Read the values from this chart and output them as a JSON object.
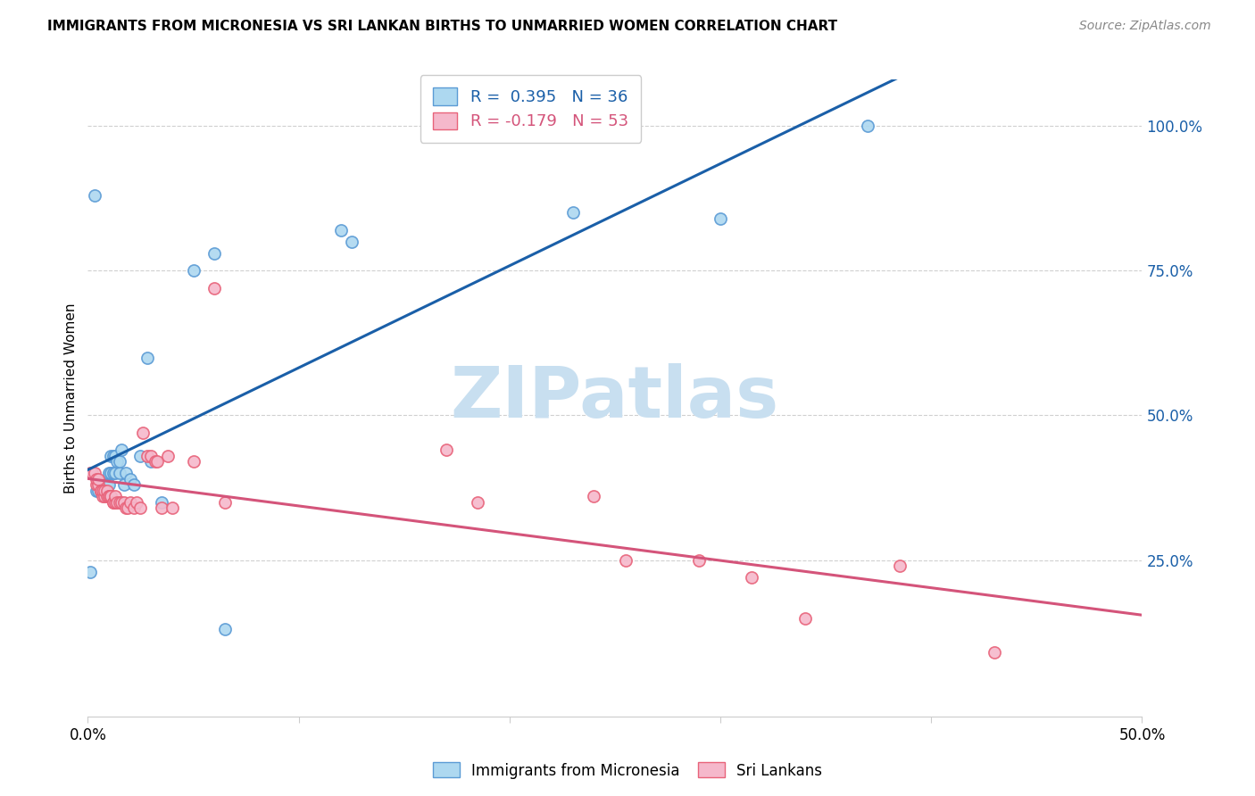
{
  "title": "IMMIGRANTS FROM MICRONESIA VS SRI LANKAN BIRTHS TO UNMARRIED WOMEN CORRELATION CHART",
  "source": "Source: ZipAtlas.com",
  "ylabel": "Births to Unmarried Women",
  "xlim": [
    0.0,
    0.5
  ],
  "ylim": [
    -0.02,
    1.08
  ],
  "x_ticks": [
    0.0,
    0.1,
    0.2,
    0.3,
    0.4,
    0.5
  ],
  "x_tick_labels": [
    "0.0%",
    "",
    "",
    "",
    "",
    "50.0%"
  ],
  "y_ticks_right": [
    0.25,
    0.5,
    0.75,
    1.0
  ],
  "y_tick_labels_right": [
    "25.0%",
    "50.0%",
    "75.0%",
    "100.0%"
  ],
  "series1_label": "Immigrants from Micronesia",
  "series2_label": "Sri Lankans",
  "series1_color": "#add8f0",
  "series2_color": "#f5b8cb",
  "series1_edge_color": "#5b9bd5",
  "series2_edge_color": "#e8637a",
  "trendline1_color": "#1a5fa8",
  "trendline2_color": "#d4547a",
  "legend_r1": "R =  0.395   N = 36",
  "legend_r2": "R = -0.179   N = 53",
  "watermark": "ZIPatlas",
  "watermark_color": "#c8dff0",
  "background_color": "#ffffff",
  "series1_R": 0.395,
  "series1_N": 36,
  "series2_R": -0.179,
  "series2_N": 53,
  "series1_x": [
    0.001,
    0.003,
    0.004,
    0.005,
    0.006,
    0.007,
    0.008,
    0.009,
    0.01,
    0.01,
    0.011,
    0.011,
    0.012,
    0.012,
    0.013,
    0.013,
    0.014,
    0.015,
    0.015,
    0.016,
    0.017,
    0.018,
    0.02,
    0.022,
    0.025,
    0.028,
    0.03,
    0.035,
    0.05,
    0.06,
    0.065,
    0.12,
    0.125,
    0.23,
    0.3,
    0.37
  ],
  "series1_y": [
    0.23,
    0.88,
    0.37,
    0.37,
    0.37,
    0.38,
    0.38,
    0.38,
    0.38,
    0.4,
    0.4,
    0.43,
    0.4,
    0.43,
    0.4,
    0.43,
    0.42,
    0.4,
    0.42,
    0.44,
    0.38,
    0.4,
    0.39,
    0.38,
    0.43,
    0.6,
    0.42,
    0.35,
    0.75,
    0.78,
    0.13,
    0.82,
    0.8,
    0.85,
    0.84,
    1.0
  ],
  "series2_x": [
    0.001,
    0.002,
    0.003,
    0.004,
    0.004,
    0.005,
    0.005,
    0.006,
    0.006,
    0.007,
    0.007,
    0.008,
    0.008,
    0.009,
    0.009,
    0.01,
    0.01,
    0.011,
    0.011,
    0.012,
    0.012,
    0.013,
    0.013,
    0.014,
    0.015,
    0.016,
    0.017,
    0.018,
    0.019,
    0.02,
    0.022,
    0.023,
    0.025,
    0.026,
    0.028,
    0.03,
    0.032,
    0.033,
    0.035,
    0.038,
    0.04,
    0.05,
    0.06,
    0.065,
    0.17,
    0.185,
    0.24,
    0.255,
    0.29,
    0.315,
    0.34,
    0.385,
    0.43
  ],
  "series2_y": [
    0.4,
    0.4,
    0.4,
    0.38,
    0.39,
    0.38,
    0.39,
    0.37,
    0.37,
    0.36,
    0.37,
    0.36,
    0.37,
    0.36,
    0.37,
    0.36,
    0.36,
    0.36,
    0.36,
    0.35,
    0.35,
    0.35,
    0.36,
    0.35,
    0.35,
    0.35,
    0.35,
    0.34,
    0.34,
    0.35,
    0.34,
    0.35,
    0.34,
    0.47,
    0.43,
    0.43,
    0.42,
    0.42,
    0.34,
    0.43,
    0.34,
    0.42,
    0.72,
    0.35,
    0.44,
    0.35,
    0.36,
    0.25,
    0.25,
    0.22,
    0.15,
    0.24,
    0.09
  ]
}
